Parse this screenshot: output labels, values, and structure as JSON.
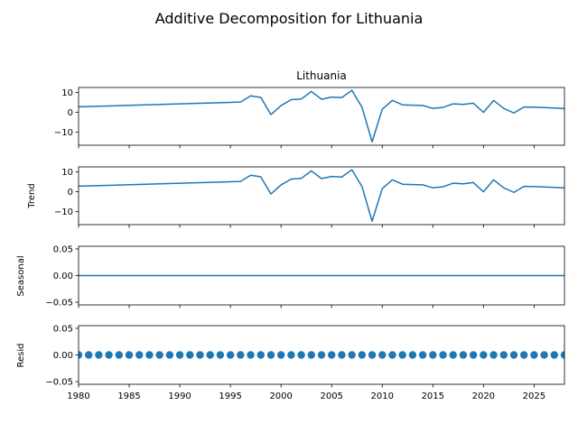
{
  "chart_data": {
    "type": "line",
    "title": "Additive Decomposition for Lithuania",
    "series_color": "#1f77b4",
    "x_ticks": [
      1980,
      1985,
      1990,
      1995,
      2000,
      2005,
      2010,
      2015,
      2020,
      2025
    ],
    "x_tick_labels": [
      "1980",
      "1985",
      "1990",
      "1995",
      "2000",
      "2005",
      "2010",
      "2015",
      "2020",
      "2025"
    ],
    "xlim": [
      1980,
      2028
    ],
    "panels": [
      {
        "id": "observed",
        "subtitle": "Lithuania",
        "ylabel": "",
        "ylim": [
          -16.5,
          12.5
        ],
        "y_ticks": [
          10,
          0,
          -10
        ],
        "y_tick_labels": [
          "10",
          "0",
          "−10"
        ],
        "x_tick_labels_visible": false,
        "mode": "line",
        "x": [
          1980,
          1996,
          1997,
          1998,
          1999,
          2000,
          2001,
          2002,
          2003,
          2004,
          2005,
          2006,
          2007,
          2008,
          2009,
          2010,
          2011,
          2012,
          2013,
          2014,
          2015,
          2016,
          2017,
          2018,
          2019,
          2020,
          2021,
          2022,
          2023,
          2024,
          2025,
          2026,
          2027,
          2028
        ],
        "y": [
          2.8,
          5.2,
          8.3,
          7.5,
          -1.1,
          3.4,
          6.4,
          6.7,
          10.5,
          6.6,
          7.7,
          7.4,
          11.1,
          2.6,
          -14.8,
          1.6,
          6.0,
          3.8,
          3.6,
          3.5,
          2.0,
          2.5,
          4.3,
          4.0,
          4.6,
          0.0,
          6.0,
          2.0,
          -0.3,
          2.7,
          2.6,
          2.4,
          2.2,
          1.9
        ]
      },
      {
        "id": "trend",
        "subtitle": "",
        "ylabel": "Trend",
        "ylim": [
          -16.5,
          12.5
        ],
        "y_ticks": [
          10,
          0,
          -10
        ],
        "y_tick_labels": [
          "10",
          "0",
          "−10"
        ],
        "x_tick_labels_visible": false,
        "mode": "line",
        "x": [
          1980,
          1996,
          1997,
          1998,
          1999,
          2000,
          2001,
          2002,
          2003,
          2004,
          2005,
          2006,
          2007,
          2008,
          2009,
          2010,
          2011,
          2012,
          2013,
          2014,
          2015,
          2016,
          2017,
          2018,
          2019,
          2020,
          2021,
          2022,
          2023,
          2024,
          2025,
          2026,
          2027,
          2028
        ],
        "y": [
          2.8,
          5.2,
          8.3,
          7.5,
          -1.1,
          3.4,
          6.4,
          6.7,
          10.5,
          6.6,
          7.7,
          7.4,
          11.1,
          2.6,
          -14.8,
          1.6,
          6.0,
          3.8,
          3.6,
          3.5,
          2.0,
          2.5,
          4.3,
          4.0,
          4.6,
          0.0,
          6.0,
          2.0,
          -0.3,
          2.7,
          2.6,
          2.4,
          2.2,
          1.9
        ]
      },
      {
        "id": "seasonal",
        "subtitle": "",
        "ylabel": "Seasonal",
        "ylim": [
          -0.055,
          0.055
        ],
        "y_ticks": [
          0.05,
          0.0,
          -0.05
        ],
        "y_tick_labels": [
          "0.05",
          "0.00",
          "−0.05"
        ],
        "x_tick_labels_visible": false,
        "mode": "line",
        "x": [
          1980,
          2028
        ],
        "y": [
          0,
          0
        ]
      },
      {
        "id": "resid",
        "subtitle": "",
        "ylabel": "Resid",
        "ylim": [
          -0.055,
          0.055
        ],
        "y_ticks": [
          0.05,
          0.0,
          -0.05
        ],
        "y_tick_labels": [
          "0.05",
          "0.00",
          "−0.05"
        ],
        "x_tick_labels_visible": true,
        "mode": "scatter",
        "x": [
          1980,
          1981,
          1982,
          1983,
          1984,
          1985,
          1986,
          1987,
          1988,
          1989,
          1990,
          1991,
          1992,
          1993,
          1994,
          1995,
          1996,
          1997,
          1998,
          1999,
          2000,
          2001,
          2002,
          2003,
          2004,
          2005,
          2006,
          2007,
          2008,
          2009,
          2010,
          2011,
          2012,
          2013,
          2014,
          2015,
          2016,
          2017,
          2018,
          2019,
          2020,
          2021,
          2022,
          2023,
          2024,
          2025,
          2026,
          2027,
          2028
        ],
        "y": [
          0,
          0,
          0,
          0,
          0,
          0,
          0,
          0,
          0,
          0,
          0,
          0,
          0,
          0,
          0,
          0,
          0,
          0,
          0,
          0,
          0,
          0,
          0,
          0,
          0,
          0,
          0,
          0,
          0,
          0,
          0,
          0,
          0,
          0,
          0,
          0,
          0,
          0,
          0,
          0,
          0,
          0,
          0,
          0,
          0,
          0,
          0,
          0,
          0
        ]
      }
    ]
  }
}
